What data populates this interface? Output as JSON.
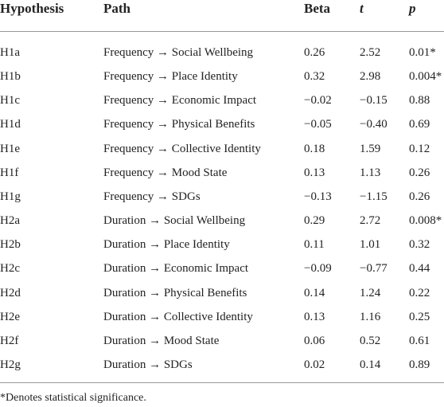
{
  "table": {
    "columns": [
      "Hypothesis",
      "Path",
      "Beta",
      "t",
      "p"
    ],
    "rows": [
      [
        "H1a",
        "Frequency → Social Wellbeing",
        "0.26",
        "2.52",
        "0.01*"
      ],
      [
        "H1b",
        "Frequency → Place Identity",
        "0.32",
        "2.98",
        "0.004*"
      ],
      [
        "H1c",
        "Frequency → Economic Impact",
        "−0.02",
        "−0.15",
        "0.88"
      ],
      [
        "H1d",
        "Frequency → Physical Benefits",
        "−0.05",
        "−0.40",
        "0.69"
      ],
      [
        "H1e",
        "Frequency → Collective Identity",
        "0.18",
        "1.59",
        "0.12"
      ],
      [
        "H1f",
        "Frequency → Mood State",
        "0.13",
        "1.13",
        "0.26"
      ],
      [
        "H1g",
        "Frequency → SDGs",
        "−0.13",
        "−1.15",
        "0.26"
      ],
      [
        "H2a",
        "Duration → Social Wellbeing",
        "0.29",
        "2.72",
        "0.008*"
      ],
      [
        "H2b",
        "Duration → Place Identity",
        "0.11",
        "1.01",
        "0.32"
      ],
      [
        "H2c",
        "Duration → Economic Impact",
        "−0.09",
        "−0.77",
        "0.44"
      ],
      [
        "H2d",
        "Duration → Physical Benefits",
        "0.14",
        "1.24",
        "0.22"
      ],
      [
        "H2e",
        "Duration → Collective Identity",
        "0.13",
        "1.16",
        "0.25"
      ],
      [
        "H2f",
        "Duration → Mood State",
        "0.06",
        "0.52",
        "0.61"
      ],
      [
        "H2g",
        "Duration → SDGs",
        "0.02",
        "0.14",
        "0.89"
      ]
    ],
    "footnote": "*Denotes statistical significance."
  }
}
